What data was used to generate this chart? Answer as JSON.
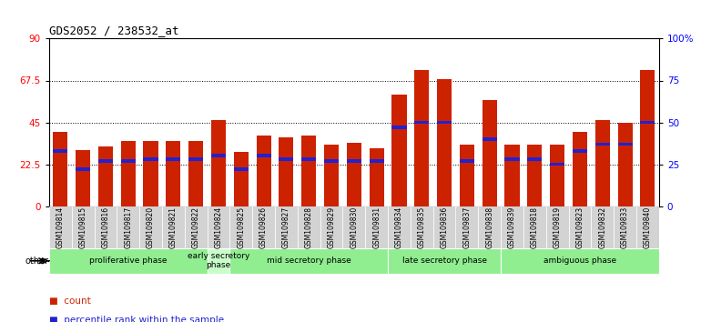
{
  "title": "GDS2052 / 238532_at",
  "samples": [
    "GSM109814",
    "GSM109815",
    "GSM109816",
    "GSM109817",
    "GSM109820",
    "GSM109821",
    "GSM109822",
    "GSM109824",
    "GSM109825",
    "GSM109826",
    "GSM109827",
    "GSM109828",
    "GSM109829",
    "GSM109830",
    "GSM109831",
    "GSM109834",
    "GSM109835",
    "GSM109836",
    "GSM109837",
    "GSM109838",
    "GSM109839",
    "GSM109818",
    "GSM109819",
    "GSM109823",
    "GSM109832",
    "GSM109833",
    "GSM109840"
  ],
  "count_values": [
    40,
    30,
    32,
    35,
    35,
    35,
    35,
    46,
    29,
    38,
    37,
    38,
    33,
    34,
    31,
    60,
    73,
    68,
    33,
    57,
    33,
    33,
    33,
    40,
    46,
    45,
    73
  ],
  "percentile_values": [
    33,
    22,
    27,
    27,
    28,
    28,
    28,
    30,
    22,
    30,
    28,
    28,
    27,
    27,
    27,
    47,
    50,
    50,
    27,
    40,
    28,
    28,
    25,
    33,
    37,
    37,
    50
  ],
  "phases": [
    {
      "label": "proliferative phase",
      "start": 0,
      "end": 7,
      "color": "#90EE90"
    },
    {
      "label": "early secretory\nphase",
      "start": 7,
      "end": 8,
      "color": "#c8ffc8"
    },
    {
      "label": "mid secretory phase",
      "start": 8,
      "end": 15,
      "color": "#90EE90"
    },
    {
      "label": "late secretory phase",
      "start": 15,
      "end": 20,
      "color": "#90EE90"
    },
    {
      "label": "ambiguous phase",
      "start": 20,
      "end": 27,
      "color": "#90EE90"
    }
  ],
  "ylim_left": [
    0,
    90
  ],
  "ylim_right": [
    0,
    100
  ],
  "yticks_left": [
    0,
    22.5,
    45,
    67.5,
    90
  ],
  "ytick_labels_left": [
    "0",
    "22.5",
    "45",
    "67.5",
    "90"
  ],
  "yticks_right": [
    0,
    25,
    50,
    75,
    100
  ],
  "ytick_labels_right": [
    "0",
    "25",
    "50",
    "75",
    "100%"
  ],
  "bar_color": "#CC2200",
  "percentile_color": "#2222CC",
  "bg_color": "#ffffff",
  "tick_bg": "#d0d0d0"
}
